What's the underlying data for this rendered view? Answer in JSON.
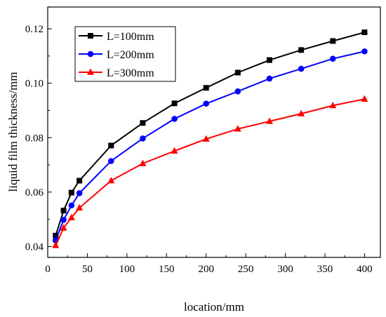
{
  "chart_data": {
    "type": "line",
    "title": "",
    "xlabel": "location/mm",
    "ylabel": "liquid film thickness/mm",
    "xlim": [
      0,
      420
    ],
    "ylim": [
      0.036,
      0.128
    ],
    "xticks": [
      0,
      50,
      100,
      150,
      200,
      250,
      300,
      350,
      400
    ],
    "yticks": [
      0.04,
      0.06,
      0.08,
      0.1,
      0.12
    ],
    "ytick_labels": [
      "0.04",
      "0.06",
      "0.08",
      "0.10",
      "0.12"
    ],
    "grid": false,
    "legend_position": "top-left",
    "x": [
      10,
      20,
      30,
      40,
      80,
      120,
      160,
      200,
      240,
      280,
      320,
      360,
      400
    ],
    "series": [
      {
        "name": "L=100mm",
        "color": "#000000",
        "marker": "square",
        "values": [
          0.044,
          0.0532,
          0.0598,
          0.0642,
          0.0771,
          0.0854,
          0.0926,
          0.0983,
          0.1039,
          0.1085,
          0.1122,
          0.1155,
          0.1187
        ]
      },
      {
        "name": "L=200mm",
        "color": "#0000ff",
        "marker": "circle",
        "values": [
          0.0422,
          0.0498,
          0.0551,
          0.0596,
          0.0714,
          0.0797,
          0.0869,
          0.0925,
          0.097,
          0.1017,
          0.1053,
          0.109,
          0.1117
        ]
      },
      {
        "name": "L=300mm",
        "color": "#ff0000",
        "marker": "triangle",
        "values": [
          0.0404,
          0.0468,
          0.0506,
          0.0542,
          0.0642,
          0.0705,
          0.0751,
          0.0795,
          0.0832,
          0.086,
          0.0888,
          0.0918,
          0.0942
        ]
      }
    ]
  }
}
